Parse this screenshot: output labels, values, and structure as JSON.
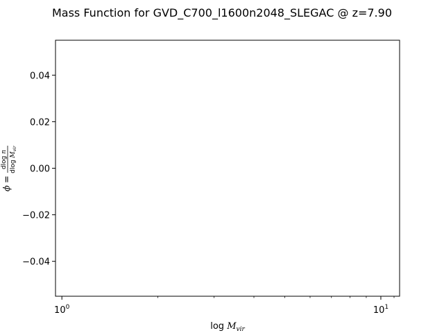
{
  "chart_data": {
    "type": "line",
    "title": "Mass Function for GVD_C700_l1600n2048_SLEGAC @ z=7.90",
    "xlabel": "log M_vir",
    "ylabel": "φ = dlog n / dlog M_vir",
    "x_scale": "log",
    "xlim": [
      0.955,
      11.45
    ],
    "ylim": [
      -0.055,
      0.055
    ],
    "grid": false,
    "series": [],
    "x_ticks": [
      {
        "value": 1,
        "label": "10⁰",
        "base": "10",
        "exp": "0"
      },
      {
        "value": 10,
        "label": "10¹",
        "base": "10",
        "exp": "1"
      }
    ],
    "y_ticks": [
      {
        "value": 0.04,
        "label": "0.04"
      },
      {
        "value": 0.02,
        "label": "0.02"
      },
      {
        "value": 0.0,
        "label": "0.00"
      },
      {
        "value": -0.02,
        "label": "−0.02"
      },
      {
        "value": -0.04,
        "label": "−0.04"
      }
    ],
    "y_minor_ticks": [],
    "x_minor_ticks": [
      2,
      3,
      4,
      5,
      6,
      7,
      8,
      9
    ]
  }
}
